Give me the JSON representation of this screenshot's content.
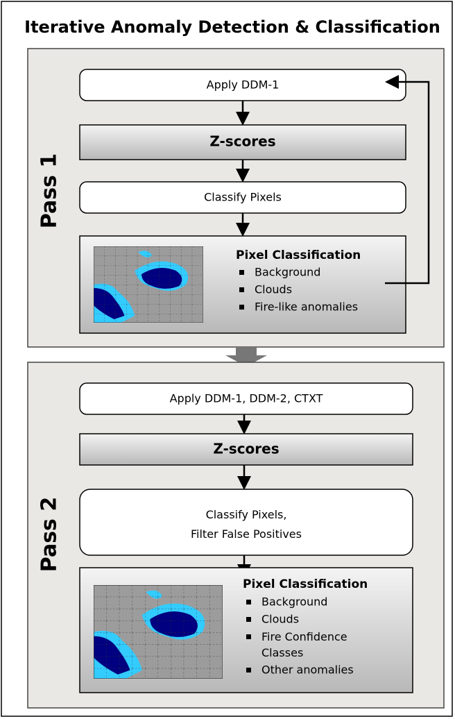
{
  "title": "Iterative Anomaly Detection & Classification",
  "passes": [
    {
      "label": "Pass 1",
      "steps": [
        "Apply DDM-1",
        "Z-scores",
        "Classify Pixels"
      ],
      "result": {
        "title": "Pixel Classification",
        "items": [
          "Background",
          "Clouds",
          "Fire-like anomalies"
        ]
      }
    },
    {
      "label": "Pass 2",
      "steps": [
        "Apply DDM-1, DDM-2, CTXT",
        "Z-scores",
        "Classify Pixels,\nFilter False Positives"
      ],
      "result": {
        "title": "Pixel Classification",
        "items": [
          "Background",
          "Clouds",
          "Fire Confidence\nClasses",
          "Other anomalies"
        ]
      }
    }
  ]
}
